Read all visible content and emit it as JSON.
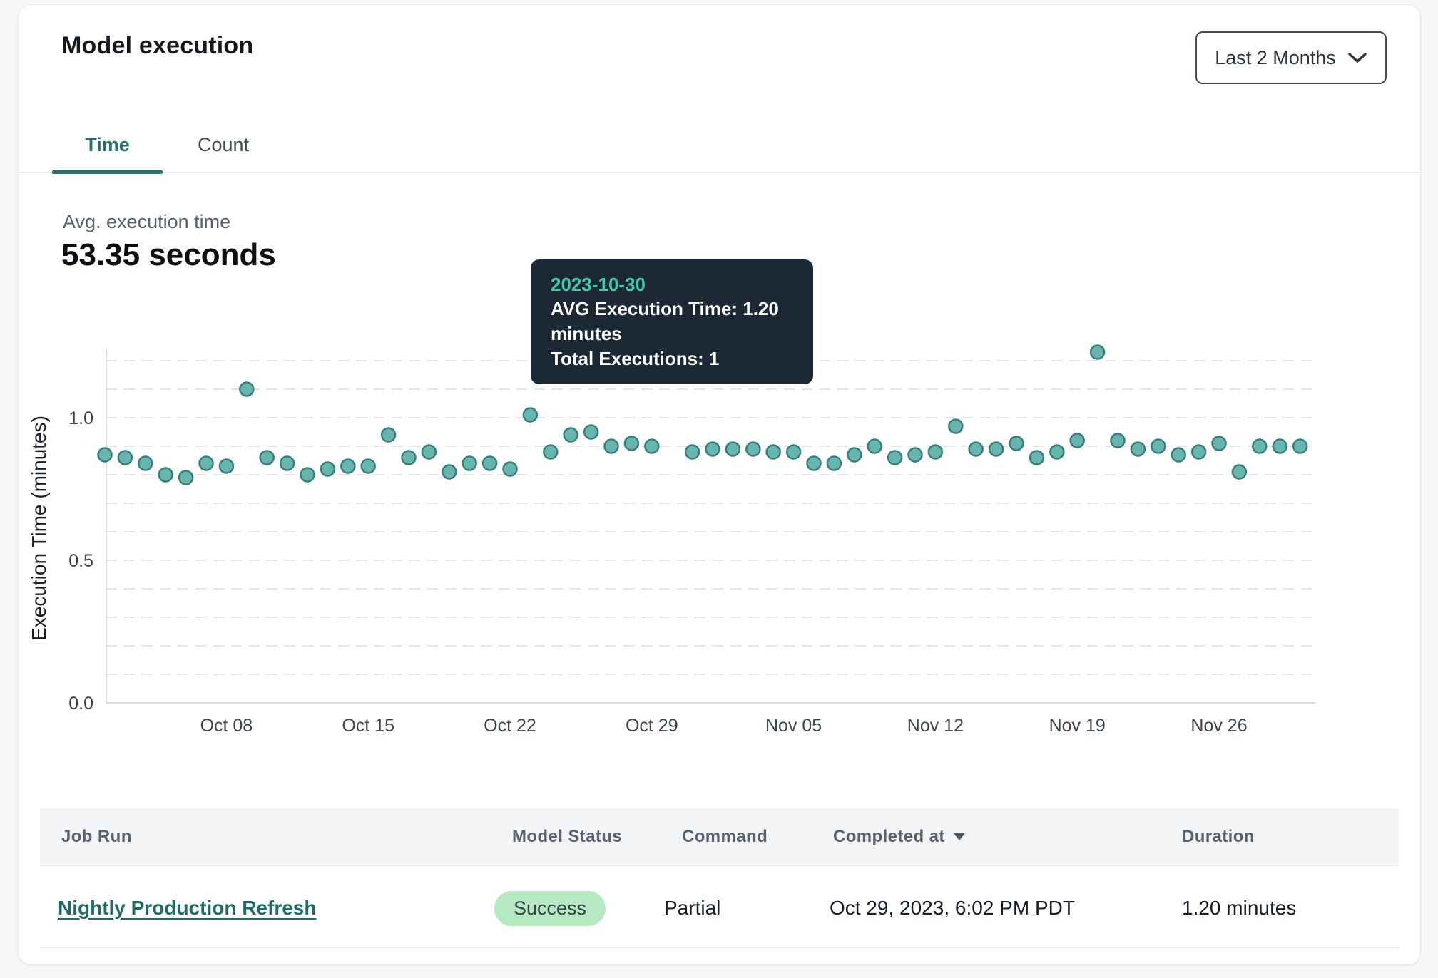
{
  "card": {
    "title": "Model execution"
  },
  "controls": {
    "range_selector": {
      "label": "Last 2 Months"
    }
  },
  "tabs": [
    {
      "label": "Time",
      "active": true
    },
    {
      "label": "Count",
      "active": false
    }
  ],
  "metric": {
    "label": "Avg. execution time",
    "value": "53.35 seconds"
  },
  "tooltip": {
    "date": "2023-10-30",
    "line1": "AVG Execution Time: 1.20 minutes",
    "line2": "Total Executions: 1"
  },
  "chart_data": {
    "type": "scatter",
    "title": "",
    "xlabel": "",
    "ylabel": "Execution Time (minutes)",
    "ylim": [
      0,
      1.235
    ],
    "ytick_labels": [
      0.0,
      0.5,
      1.0
    ],
    "gridline_step": 0.1,
    "grid": true,
    "x_tick_labels": [
      "Oct 08",
      "Oct 15",
      "Oct 22",
      "Oct 29",
      "Nov 05",
      "Nov 12",
      "Nov 19",
      "Nov 26"
    ],
    "x_tick_indices": [
      6,
      13,
      20,
      27,
      34,
      41,
      48,
      55
    ],
    "highlight_date": "2023-10-30",
    "point_color": "#68b5b0",
    "point_stroke": "#35807c",
    "highlight_color": "#2f7472",
    "dates": [
      "2023-10-02",
      "2023-10-03",
      "2023-10-04",
      "2023-10-05",
      "2023-10-06",
      "2023-10-07",
      "2023-10-08",
      "2023-10-09",
      "2023-10-10",
      "2023-10-11",
      "2023-10-12",
      "2023-10-13",
      "2023-10-14",
      "2023-10-15",
      "2023-10-16",
      "2023-10-17",
      "2023-10-18",
      "2023-10-19",
      "2023-10-20",
      "2023-10-21",
      "2023-10-22",
      "2023-10-23",
      "2023-10-24",
      "2023-10-25",
      "2023-10-26",
      "2023-10-27",
      "2023-10-28",
      "2023-10-29",
      "2023-10-30",
      "2023-10-31",
      "2023-11-01",
      "2023-11-02",
      "2023-11-03",
      "2023-11-04",
      "2023-11-05",
      "2023-11-06",
      "2023-11-07",
      "2023-11-08",
      "2023-11-09",
      "2023-11-10",
      "2023-11-11",
      "2023-11-12",
      "2023-11-13",
      "2023-11-14",
      "2023-11-15",
      "2023-11-16",
      "2023-11-17",
      "2023-11-18",
      "2023-11-19",
      "2023-11-20",
      "2023-11-21",
      "2023-11-22",
      "2023-11-23",
      "2023-11-24",
      "2023-11-25",
      "2023-11-26",
      "2023-11-27",
      "2023-11-28",
      "2023-11-29",
      "2023-11-30"
    ],
    "values": [
      0.87,
      0.86,
      0.84,
      0.8,
      0.79,
      0.84,
      0.83,
      1.1,
      0.86,
      0.84,
      0.8,
      0.82,
      0.83,
      0.83,
      0.94,
      0.86,
      0.88,
      0.81,
      0.84,
      0.84,
      0.82,
      1.01,
      0.88,
      0.94,
      0.95,
      0.9,
      0.91,
      0.9,
      1.2,
      0.88,
      0.89,
      0.89,
      0.89,
      0.88,
      0.88,
      0.84,
      0.84,
      0.87,
      0.9,
      0.86,
      0.87,
      0.88,
      0.97,
      0.89,
      0.89,
      0.91,
      0.86,
      0.88,
      0.92,
      1.23,
      0.92,
      0.89,
      0.9,
      0.87,
      0.88,
      0.91,
      0.81,
      0.9,
      0.9,
      0.9
    ]
  },
  "table": {
    "columns": [
      {
        "label": "Job Run"
      },
      {
        "label": "Model Status"
      },
      {
        "label": "Command"
      },
      {
        "label": "Completed at",
        "sorted": "desc"
      },
      {
        "label": "Duration"
      }
    ],
    "rows": [
      {
        "job_run": "Nightly Production Refresh",
        "model_status": "Success",
        "command": "Partial",
        "completed_at": "Oct 29, 2023, 6:02 PM PDT",
        "duration": "1.20 minutes"
      }
    ]
  }
}
